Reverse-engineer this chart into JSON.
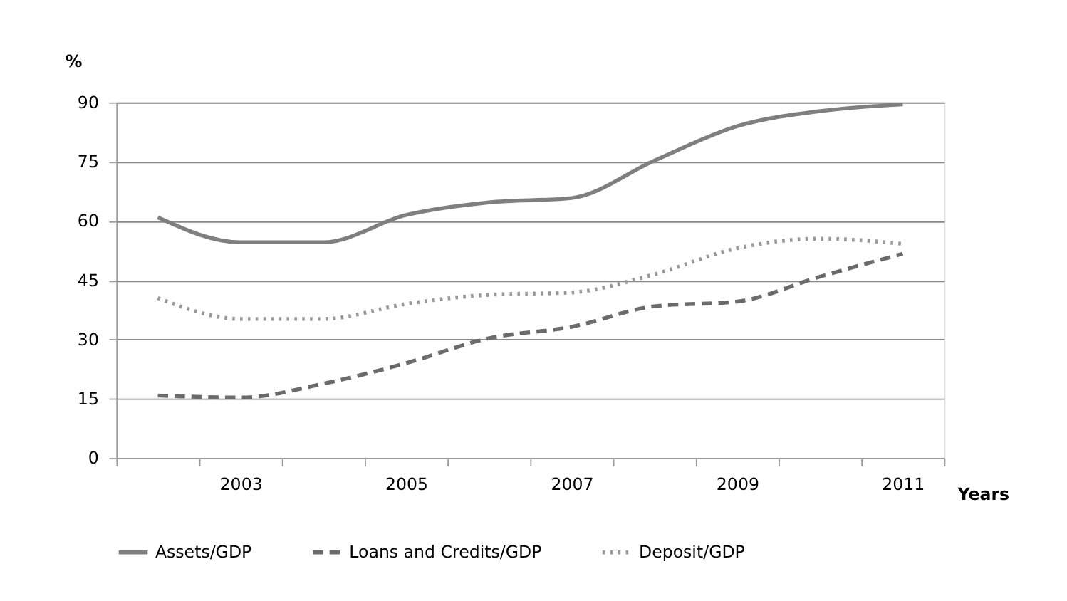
{
  "chart_data": {
    "type": "line",
    "ylabel": "%",
    "xlabel": "Years",
    "categories": [
      null,
      "2003",
      null,
      "2005",
      null,
      "2007",
      null,
      "2009",
      null,
      "2011"
    ],
    "series": [
      {
        "name": "Assets/GDP",
        "color": "#7f7f7f",
        "line_style": "solid",
        "values": [
          60.9,
          54.6,
          54.6,
          61.5,
          64.7,
          65.8,
          75.3,
          84,
          87.8,
          89.5
        ]
      },
      {
        "name": "Loans and Credits/GDP",
        "color": "#6b6b6b",
        "line_style": "dashed",
        "values": [
          15.8,
          15.3,
          18.8,
          24,
          30.3,
          33.2,
          38.4,
          39.6,
          45.9,
          51.7
        ]
      },
      {
        "name": "Deposit/GDP",
        "color": "#999999",
        "line_style": "dotted",
        "values": [
          40.5,
          35.2,
          35.2,
          39,
          41.3,
          41.9,
          46.5,
          53.1,
          55.5,
          54.2
        ]
      }
    ],
    "ylim": [
      0,
      90
    ],
    "yticks": [
      0,
      15,
      30,
      45,
      60,
      75,
      90
    ],
    "grid": "y",
    "legend": "bottom",
    "marker": "none"
  }
}
